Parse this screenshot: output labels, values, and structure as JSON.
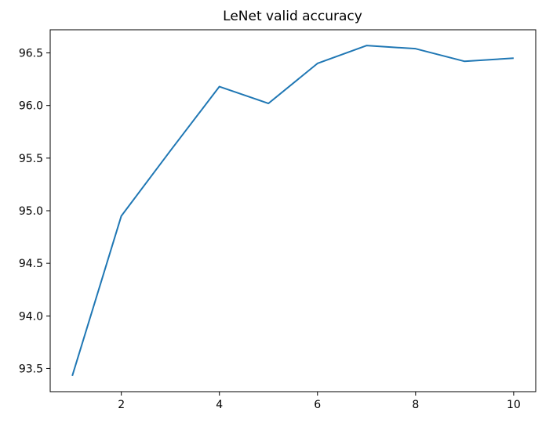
{
  "chart_data": {
    "type": "line",
    "title": "LeNet valid accuracy",
    "xlabel": "",
    "ylabel": "",
    "x": [
      1,
      2,
      3,
      4,
      5,
      6,
      7,
      8,
      9,
      10
    ],
    "series": [
      {
        "values": [
          93.43,
          94.95,
          95.57,
          96.18,
          96.02,
          96.4,
          96.57,
          96.54,
          96.42,
          96.45
        ],
        "color": "#1f77b4"
      }
    ],
    "xlim": [
      0.55,
      10.45
    ],
    "ylim": [
      93.28,
      96.72
    ],
    "x_ticks": [
      2,
      4,
      6,
      8,
      10
    ],
    "x_tick_labels": [
      "2",
      "4",
      "6",
      "8",
      "10"
    ],
    "y_ticks": [
      93.5,
      94.0,
      94.5,
      95.0,
      95.5,
      96.0,
      96.5
    ],
    "y_tick_labels": [
      "93.5",
      "94.0",
      "94.5",
      "95.0",
      "95.5",
      "96.0",
      "96.5"
    ],
    "grid": false,
    "legend": "none"
  }
}
